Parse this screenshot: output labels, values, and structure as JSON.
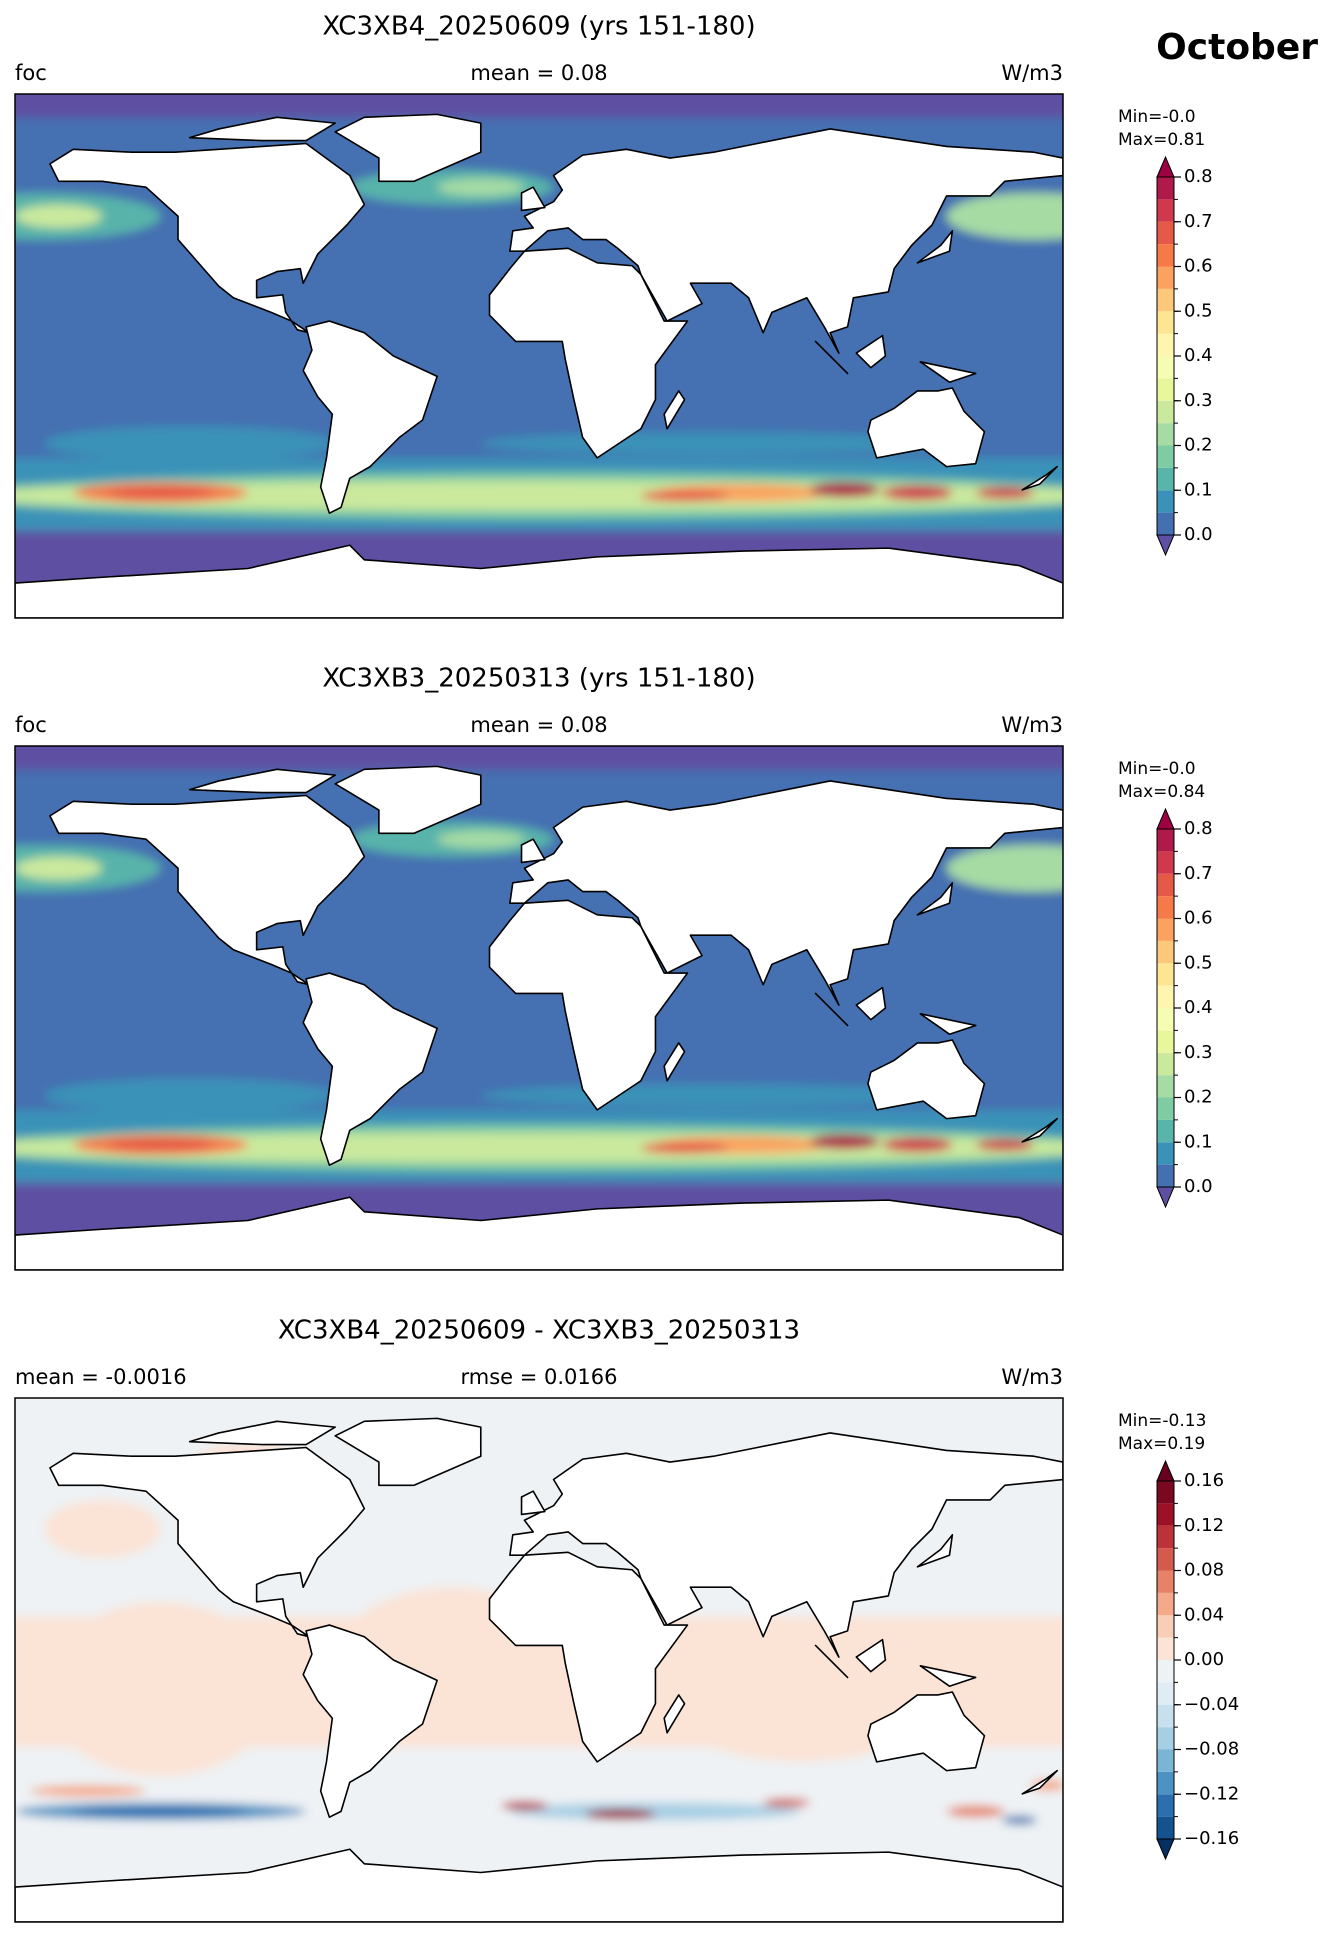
{
  "month": "October",
  "panels": [
    {
      "title": "XC3XB4_20250609 (yrs 151-180)",
      "left": "foc",
      "center": "mean = 0.08",
      "right": "W/m3",
      "min_label": "Min=-0.0",
      "max_label": "Max=0.81",
      "colorbar": {
        "ticks": [
          {
            "value": 0,
            "label": "0.0"
          },
          0.1,
          0.2,
          0.3,
          0.4,
          0.5,
          0.6,
          0.7,
          0.8
        ],
        "levels": [
          0,
          0.05,
          0.1,
          0.15,
          0.2,
          0.25,
          0.3,
          0.35,
          0.4,
          0.45,
          0.5,
          0.55,
          0.6,
          0.65,
          0.7,
          0.75,
          0.8
        ],
        "colors": [
          "#4470b1",
          "#3b92b8",
          "#59b4aa",
          "#7ecba4",
          "#a6dba4",
          "#cae99d",
          "#e8f69c",
          "#f7fcb3",
          "#fff5ae",
          "#fee593",
          "#fdc877",
          "#fba35e",
          "#f67a49",
          "#e65847",
          "#cf384d",
          "#b01a4a"
        ],
        "under": "#5e4fa2",
        "over": "#9e0142"
      }
    },
    {
      "title": "XC3XB3_20250313 (yrs 151-180)",
      "left": "foc",
      "center": "mean = 0.08",
      "right": "W/m3",
      "min_label": "Min=-0.0",
      "max_label": "Max=0.84",
      "colorbar": {
        "ticks": [
          {
            "value": 0,
            "label": "0.0"
          },
          0.1,
          0.2,
          0.3,
          0.4,
          0.5,
          0.6,
          0.7,
          0.8
        ],
        "levels": [
          0,
          0.05,
          0.1,
          0.15,
          0.2,
          0.25,
          0.3,
          0.35,
          0.4,
          0.45,
          0.5,
          0.55,
          0.6,
          0.65,
          0.7,
          0.75,
          0.8
        ],
        "colors": [
          "#4470b1",
          "#3b92b8",
          "#59b4aa",
          "#7ecba4",
          "#a6dba4",
          "#cae99d",
          "#e8f69c",
          "#f7fcb3",
          "#fff5ae",
          "#fee593",
          "#fdc877",
          "#fba35e",
          "#f67a49",
          "#e65847",
          "#cf384d",
          "#b01a4a"
        ],
        "under": "#5e4fa2",
        "over": "#9e0142"
      }
    },
    {
      "title": "XC3XB4_20250609 - XC3XB3_20250313",
      "left": "mean = -0.0016",
      "center": "rmse = 0.0166",
      "right": "W/m3",
      "min_label": "Min=-0.13",
      "max_label": "Max=0.19",
      "colorbar": {
        "ticks": [
          {
            "value": -0.16,
            "label": "−0.16"
          },
          {
            "value": -0.12,
            "label": "−0.12"
          },
          {
            "value": -0.08,
            "label": "−0.08"
          },
          {
            "value": -0.04,
            "label": "−0.04"
          },
          {
            "value": 0,
            "label": "0.00"
          },
          0.04,
          0.08,
          0.12,
          0.16
        ],
        "levels": [
          -0.16,
          -0.14,
          -0.12,
          -0.1,
          -0.08,
          -0.06,
          -0.04,
          -0.02,
          0,
          0.02,
          0.04,
          0.06,
          0.08,
          0.1,
          0.12,
          0.14,
          0.16
        ],
        "colors": [
          "#155290",
          "#2c6fb0",
          "#4a93c3",
          "#7bb5d6",
          "#a7cfe4",
          "#c8e0ed",
          "#dfecf3",
          "#edf2f5",
          "#fbe3d6",
          "#f9cdb6",
          "#f4aa8a",
          "#e58268",
          "#d35a4c",
          "#bd3238",
          "#9c1128",
          "#7a0821"
        ],
        "under": "#053061",
        "over": "#67001f"
      }
    }
  ]
}
